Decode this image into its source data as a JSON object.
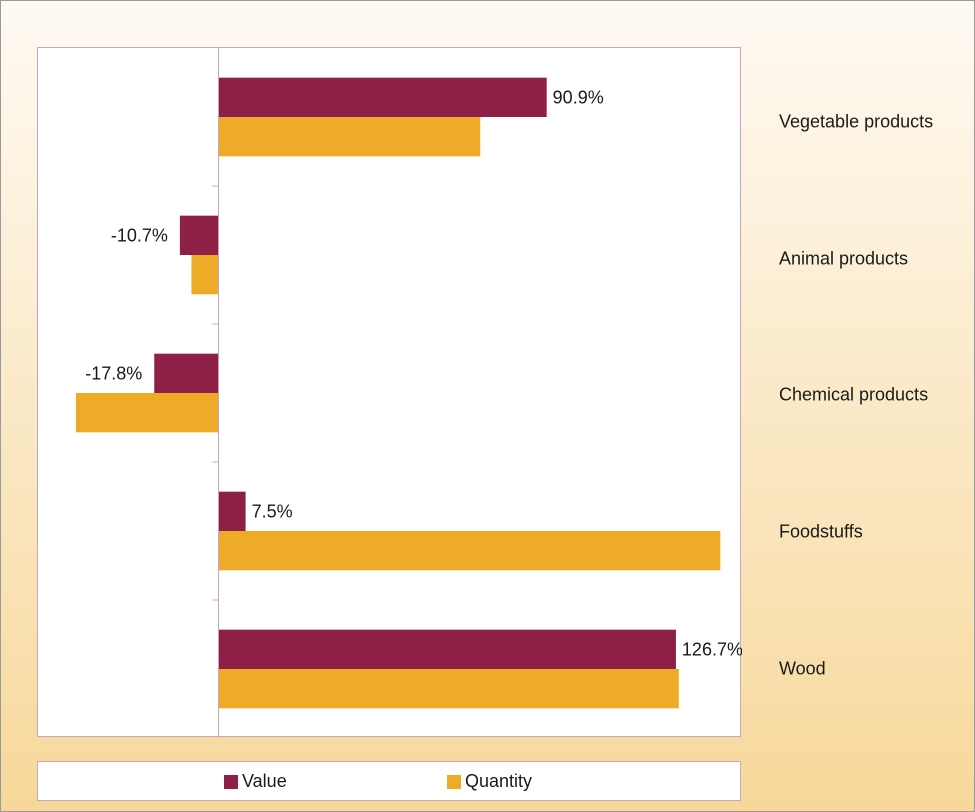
{
  "chart_data": {
    "type": "bar",
    "orientation": "horizontal",
    "categories": [
      "Vegetable products",
      "Animal products",
      "Chemical products",
      "Foodstuffs",
      "Wood"
    ],
    "series": [
      {
        "name": "Value",
        "color": "#8e1f47",
        "values": [
          90.9,
          -10.7,
          -17.8,
          7.5,
          126.7
        ]
      },
      {
        "name": "Quantity",
        "color": "#eeab27",
        "values": [
          72.5,
          -7.5,
          -39.5,
          139.0,
          127.5
        ]
      }
    ],
    "data_labels": [
      "90.9%",
      "-10.7%",
      "-17.8%",
      "7.5%",
      "126.7%"
    ],
    "xlim": [
      -50,
      145
    ],
    "grid": false,
    "legend_position": "bottom",
    "category_labels_position": "right"
  }
}
